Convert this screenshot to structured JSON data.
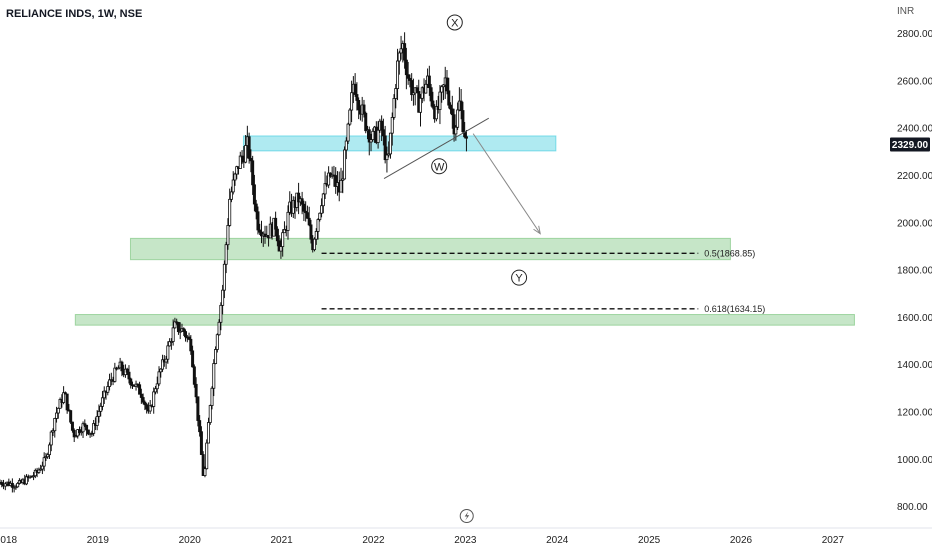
{
  "header": {
    "title": "RELIANCE INDS, 1W, NSE",
    "currency": "INR"
  },
  "chart_data": {
    "type": "candlestick",
    "interval": "1W",
    "ylim": [
      720,
      2940
    ],
    "yticks": [
      800,
      1000,
      1200,
      1400,
      1600,
      1800,
      2000,
      2200,
      2400,
      2600,
      2800
    ],
    "ytick_labels": [
      "800.00",
      "1000.00",
      "1200.00",
      "1400.00",
      "1600.00",
      "1800.00",
      "2000.00",
      "2200.00",
      "2400.00",
      "2600.00",
      "2800.00"
    ],
    "xlim": [
      2018.0,
      2027.6
    ],
    "xticks": [
      2018,
      2019,
      2020,
      2021,
      2022,
      2023,
      2024,
      2025,
      2026,
      2027
    ],
    "xtick_labels": [
      "2018",
      "2019",
      "2020",
      "2021",
      "2022",
      "2023",
      "2024",
      "2025",
      "2026",
      "2027"
    ],
    "last_price": 2329.0,
    "last_price_label": "2329.00",
    "price_path": [
      [
        2018.0,
        900
      ],
      [
        2018.2,
        890
      ],
      [
        2018.4,
        940
      ],
      [
        2018.5,
        1000
      ],
      [
        2018.6,
        1180
      ],
      [
        2018.7,
        1280
      ],
      [
        2018.8,
        1100
      ],
      [
        2018.9,
        1140
      ],
      [
        2019.0,
        1110
      ],
      [
        2019.1,
        1230
      ],
      [
        2019.2,
        1330
      ],
      [
        2019.3,
        1390
      ],
      [
        2019.45,
        1320
      ],
      [
        2019.55,
        1270
      ],
      [
        2019.62,
        1180
      ],
      [
        2019.7,
        1320
      ],
      [
        2019.8,
        1430
      ],
      [
        2019.9,
        1560
      ],
      [
        2020.0,
        1540
      ],
      [
        2020.08,
        1480
      ],
      [
        2020.16,
        1150
      ],
      [
        2020.22,
        900
      ],
      [
        2020.28,
        1200
      ],
      [
        2020.35,
        1500
      ],
      [
        2020.42,
        1700
      ],
      [
        2020.5,
        2100
      ],
      [
        2020.6,
        2250
      ],
      [
        2020.7,
        2330
      ],
      [
        2020.8,
        2000
      ],
      [
        2020.9,
        1950
      ],
      [
        2021.0,
        1990
      ],
      [
        2021.05,
        1880
      ],
      [
        2021.15,
        2050
      ],
      [
        2021.25,
        2100
      ],
      [
        2021.35,
        2000
      ],
      [
        2021.4,
        1900
      ],
      [
        2021.5,
        2100
      ],
      [
        2021.6,
        2200
      ],
      [
        2021.7,
        2130
      ],
      [
        2021.78,
        2350
      ],
      [
        2021.85,
        2600
      ],
      [
        2021.95,
        2450
      ],
      [
        2022.05,
        2350
      ],
      [
        2022.15,
        2400
      ],
      [
        2022.22,
        2230
      ],
      [
        2022.32,
        2650
      ],
      [
        2022.38,
        2760
      ],
      [
        2022.45,
        2600
      ],
      [
        2022.55,
        2500
      ],
      [
        2022.65,
        2600
      ],
      [
        2022.75,
        2450
      ],
      [
        2022.85,
        2600
      ],
      [
        2022.95,
        2400
      ],
      [
        2023.0,
        2500
      ],
      [
        2023.05,
        2400
      ],
      [
        2023.08,
        2329
      ]
    ],
    "zones": [
      {
        "name": "resistance-zone",
        "x": [
          2020.65,
          2024.05
        ],
        "y": [
          2302,
          2365
        ],
        "color": "#4dd0e1"
      },
      {
        "name": "support-zone-mid",
        "x": [
          2019.42,
          2025.95
        ],
        "y": [
          1842,
          1932
        ],
        "color": "#81c784"
      },
      {
        "name": "support-zone-low",
        "x": [
          2018.82,
          2027.3
        ],
        "y": [
          1565,
          1610
        ],
        "color": "#81c784"
      }
    ],
    "fib_levels": [
      {
        "label": "0.5(1868.85)",
        "value": 1868.85,
        "x_start": 2021.5,
        "x_end": 2025.6
      },
      {
        "label": "0.618(1634.15)",
        "value": 1634.15,
        "x_start": 2021.5,
        "x_end": 2025.6
      }
    ],
    "wave_labels": [
      {
        "text": "X",
        "x": 2022.95,
        "y": 2845
      },
      {
        "text": "W",
        "x": 2022.78,
        "y": 2237
      },
      {
        "text": "Y",
        "x": 2023.65,
        "y": 1766
      }
    ],
    "trendline": [
      [
        2022.18,
        2185
      ],
      [
        2023.32,
        2440
      ]
    ],
    "projection_arrow": [
      [
        2023.15,
        2375
      ],
      [
        2023.88,
        1952
      ]
    ]
  }
}
